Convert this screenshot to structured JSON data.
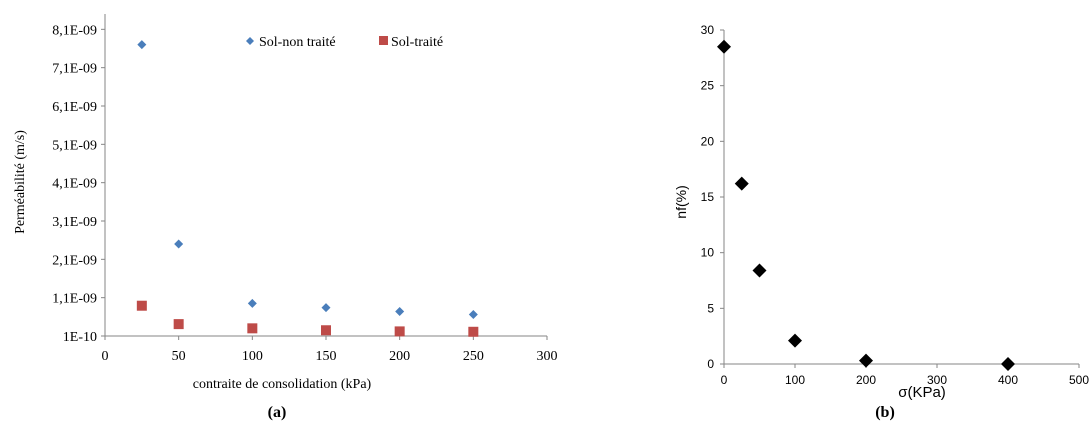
{
  "chart_data": [
    {
      "type": "scatter",
      "panel_label": "(a)",
      "title": "",
      "xlabel": "contraite de consolidation (kPa)",
      "ylabel": "Perméabilité  (m/s)",
      "xlim": [
        0,
        300
      ],
      "xticks": [
        "0",
        "50",
        "100",
        "150",
        "200",
        "250",
        "300"
      ],
      "ylim": [
        1e-10,
        8.5e-09
      ],
      "yticks": [
        {
          "value": 1e-10,
          "label": "1E-10"
        },
        {
          "value": 1.1e-09,
          "label": "1,1E-09"
        },
        {
          "value": 2.1e-09,
          "label": "2,1E-09"
        },
        {
          "value": 3.1e-09,
          "label": "3,1E-09"
        },
        {
          "value": 4.1e-09,
          "label": "4,1E-09"
        },
        {
          "value": 5.1e-09,
          "label": "5,1E-09"
        },
        {
          "value": 6.1e-09,
          "label": "6,1E-09"
        },
        {
          "value": 7.1e-09,
          "label": "7,1E-09"
        },
        {
          "value": 8.1e-09,
          "label": "8,1E-09"
        }
      ],
      "grid": false,
      "legend_position": "top",
      "series": [
        {
          "name": "Sol-non traité",
          "marker": "diamond",
          "color": "#4a7ebb",
          "x": [
            25,
            50,
            100,
            150,
            200,
            250
          ],
          "y": [
            7.7e-09,
            2.5e-09,
            9.5e-10,
            8.4e-10,
            7.4e-10,
            6.6e-10
          ]
        },
        {
          "name": "Sol-traité",
          "marker": "square",
          "color": "#be4b48",
          "x": [
            25,
            50,
            100,
            150,
            200,
            250
          ],
          "y": [
            8.9e-10,
            4.1e-10,
            3e-10,
            2.5e-10,
            2.2e-10,
            2.1e-10
          ]
        }
      ]
    },
    {
      "type": "scatter",
      "panel_label": "(b)",
      "title": "",
      "xlabel": "σ(KPa)",
      "ylabel": "nf(%)",
      "xlim": [
        0,
        500
      ],
      "xticks": [
        "0",
        "100",
        "200",
        "300",
        "400",
        "500"
      ],
      "ylim": [
        0,
        30
      ],
      "yticks": [
        "0",
        "5",
        "10",
        "15",
        "20",
        "25",
        "30"
      ],
      "grid": false,
      "legend_position": "none",
      "series": [
        {
          "marker": "diamond",
          "color": "#000000",
          "x": [
            0,
            25,
            50,
            100,
            200,
            400
          ],
          "y": [
            28.5,
            16.2,
            8.4,
            2.1,
            0.3,
            0
          ]
        }
      ]
    }
  ]
}
